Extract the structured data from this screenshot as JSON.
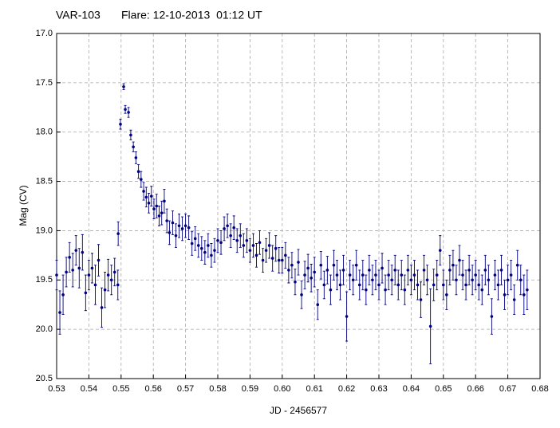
{
  "chart_data": {
    "type": "scatter",
    "title": "VAR-103",
    "subtitle": "Flare: 12-10-2013  01:12 UT",
    "x_label": "JD - 2456577",
    "y_label": "Mag (CV)",
    "color": "#000080",
    "grid": true,
    "xlim": [
      0.53,
      0.68
    ],
    "xticks": [
      0.53,
      0.54,
      0.55,
      0.56,
      0.57,
      0.58,
      0.59,
      {
        "value": 0.6,
        "label": "0.60"
      },
      0.61,
      0.62,
      0.63,
      0.64,
      0.65,
      0.66,
      0.67,
      0.68
    ],
    "ylim": [
      20.5,
      17
    ],
    "yticks": [
      {
        "value": 17,
        "label": "17.0"
      },
      17.5,
      {
        "value": 18,
        "label": "18.0"
      },
      18.5,
      {
        "value": 19,
        "label": "19.0"
      },
      19.5,
      {
        "value": 20,
        "label": "20.0"
      },
      20.5
    ],
    "x": [
      0.53,
      0.531,
      0.532,
      0.533,
      0.534,
      0.535,
      0.536,
      0.537,
      0.538,
      0.539,
      0.54,
      0.541,
      0.542,
      0.543,
      0.544,
      0.545,
      0.546,
      0.547,
      0.548,
      0.549,
      0.5491,
      0.5498,
      0.5508,
      0.5513,
      0.5523,
      0.553,
      0.5538,
      0.5546,
      0.5554,
      0.5562,
      0.557,
      0.5578,
      0.5586,
      0.5594,
      0.5602,
      0.561,
      0.5618,
      0.5626,
      0.5634,
      0.5642,
      0.565,
      0.566,
      0.567,
      0.568,
      0.569,
      0.57,
      0.571,
      0.572,
      0.573,
      0.574,
      0.575,
      0.576,
      0.577,
      0.578,
      0.579,
      0.58,
      0.581,
      0.582,
      0.583,
      0.584,
      0.585,
      0.586,
      0.587,
      0.588,
      0.589,
      0.59,
      0.591,
      0.592,
      0.593,
      0.594,
      0.595,
      0.596,
      0.597,
      0.598,
      0.599,
      0.6,
      0.601,
      0.602,
      0.603,
      0.604,
      0.605,
      0.606,
      0.607,
      0.608,
      0.609,
      0.61,
      0.611,
      0.612,
      0.613,
      0.614,
      0.615,
      0.616,
      0.617,
      0.618,
      0.619,
      0.62,
      0.621,
      0.622,
      0.623,
      0.624,
      0.625,
      0.626,
      0.627,
      0.628,
      0.629,
      0.63,
      0.631,
      0.632,
      0.633,
      0.634,
      0.635,
      0.636,
      0.637,
      0.638,
      0.639,
      0.64,
      0.641,
      0.642,
      0.643,
      0.644,
      0.645,
      0.646,
      0.647,
      0.648,
      0.649,
      0.65,
      0.651,
      0.652,
      0.653,
      0.654,
      0.655,
      0.656,
      0.657,
      0.658,
      0.659,
      0.66,
      0.661,
      0.662,
      0.663,
      0.664,
      0.665,
      0.666,
      0.667,
      0.668,
      0.669,
      0.67,
      0.671,
      0.672,
      0.673,
      0.674,
      0.675,
      0.676
    ],
    "values": [
      19.45,
      19.83,
      19.65,
      19.42,
      19.27,
      19.4,
      19.2,
      19.38,
      19.22,
      19.63,
      19.45,
      19.38,
      19.55,
      19.3,
      19.78,
      19.6,
      19.45,
      19.5,
      19.42,
      19.55,
      19.03,
      17.92,
      17.54,
      17.77,
      17.8,
      18.03,
      18.15,
      18.26,
      18.4,
      18.48,
      18.6,
      18.66,
      18.72,
      18.65,
      18.78,
      18.75,
      18.85,
      18.82,
      18.7,
      18.9,
      19.02,
      18.92,
      19.05,
      18.95,
      18.98,
      18.95,
      18.97,
      19.13,
      19.08,
      19.15,
      19.18,
      19.22,
      19.15,
      19.25,
      19.2,
      19.1,
      19.12,
      18.98,
      18.95,
      19.05,
      18.97,
      19.1,
      19.05,
      19.15,
      19.1,
      19.2,
      19.15,
      19.25,
      19.12,
      19.3,
      19.2,
      19.15,
      19.28,
      19.18,
      19.3,
      19.3,
      19.25,
      19.4,
      19.35,
      19.52,
      19.32,
      19.65,
      19.45,
      19.38,
      19.48,
      19.42,
      19.75,
      19.35,
      19.55,
      19.4,
      19.6,
      19.35,
      19.45,
      19.55,
      19.4,
      19.87,
      19.45,
      19.5,
      19.35,
      19.55,
      19.45,
      19.6,
      19.4,
      19.5,
      19.45,
      19.55,
      19.38,
      19.6,
      19.45,
      19.5,
      19.4,
      19.55,
      19.45,
      19.6,
      19.4,
      19.5,
      19.45,
      19.55,
      19.7,
      19.4,
      19.5,
      19.97,
      19.55,
      19.45,
      19.2,
      19.55,
      19.65,
      19.4,
      19.35,
      19.5,
      19.3,
      19.45,
      19.55,
      19.4,
      19.5,
      19.45,
      19.55,
      19.6,
      19.4,
      19.5,
      19.87,
      19.45,
      19.55,
      19.4,
      19.65,
      19.5,
      19.45,
      19.7,
      19.35,
      19.5,
      19.65,
      19.6
    ],
    "errors": [
      0.15,
      0.22,
      0.2,
      0.15,
      0.15,
      0.17,
      0.15,
      0.2,
      0.18,
      0.18,
      0.15,
      0.15,
      0.2,
      0.16,
      0.2,
      0.18,
      0.16,
      0.15,
      0.14,
      0.15,
      0.12,
      0.05,
      0.03,
      0.04,
      0.05,
      0.05,
      0.05,
      0.06,
      0.07,
      0.08,
      0.09,
      0.1,
      0.1,
      0.1,
      0.1,
      0.12,
      0.1,
      0.12,
      0.12,
      0.12,
      0.12,
      0.12,
      0.12,
      0.12,
      0.12,
      0.12,
      0.12,
      0.12,
      0.12,
      0.12,
      0.12,
      0.12,
      0.12,
      0.12,
      0.12,
      0.12,
      0.12,
      0.12,
      0.12,
      0.12,
      0.12,
      0.12,
      0.12,
      0.12,
      0.12,
      0.12,
      0.12,
      0.12,
      0.12,
      0.12,
      0.12,
      0.13,
      0.13,
      0.13,
      0.13,
      0.13,
      0.13,
      0.13,
      0.13,
      0.13,
      0.13,
      0.14,
      0.14,
      0.14,
      0.14,
      0.15,
      0.15,
      0.14,
      0.14,
      0.14,
      0.15,
      0.15,
      0.15,
      0.15,
      0.15,
      0.25,
      0.15,
      0.15,
      0.15,
      0.15,
      0.15,
      0.15,
      0.15,
      0.15,
      0.15,
      0.15,
      0.15,
      0.15,
      0.15,
      0.15,
      0.15,
      0.15,
      0.15,
      0.15,
      0.15,
      0.15,
      0.15,
      0.15,
      0.18,
      0.15,
      0.15,
      0.38,
      0.16,
      0.15,
      0.15,
      0.15,
      0.15,
      0.15,
      0.15,
      0.15,
      0.15,
      0.15,
      0.15,
      0.15,
      0.15,
      0.15,
      0.15,
      0.15,
      0.15,
      0.15,
      0.18,
      0.15,
      0.15,
      0.15,
      0.15,
      0.15,
      0.15,
      0.15,
      0.15,
      0.15,
      0.2,
      0.2
    ]
  }
}
